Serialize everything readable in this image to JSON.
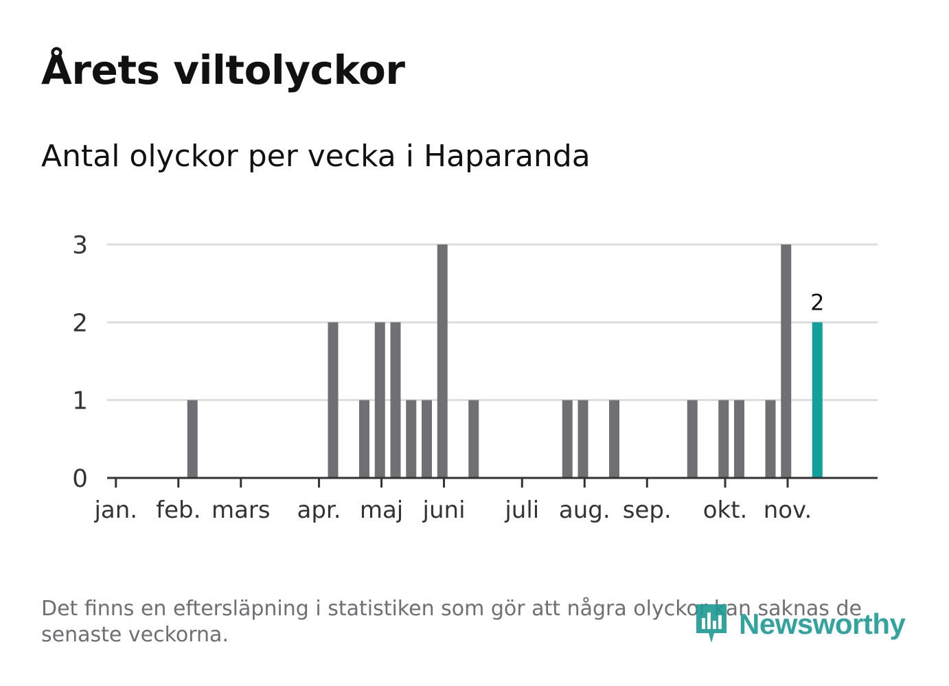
{
  "header": {
    "title": "Årets viltolyckor",
    "subtitle": "Antal olyckor per vecka i Haparanda"
  },
  "footer": {
    "note": "Det finns en eftersläpning i statistiken som gör att några olyckor kan saknas de senaste veckorna.",
    "brand": "Newsworthy"
  },
  "colors": {
    "bar": "#707074",
    "highlight": "#12a19a",
    "grid": "#dddddd",
    "axis": "#333333"
  },
  "chart_data": {
    "type": "bar",
    "title": "Årets viltolyckor",
    "subtitle": "Antal olyckor per vecka i Haparanda",
    "xlabel": "",
    "ylabel": "",
    "ylim": [
      0,
      3
    ],
    "yticks": [
      "0",
      "1",
      "2",
      "3"
    ],
    "weeks": [
      1,
      2,
      3,
      4,
      5,
      6,
      7,
      8,
      9,
      10,
      11,
      12,
      13,
      14,
      15,
      16,
      17,
      18,
      19,
      20,
      21,
      22,
      23,
      24,
      25,
      26,
      27,
      28,
      29,
      30,
      31,
      32,
      33,
      34,
      35,
      36,
      37,
      38,
      39,
      40,
      41,
      42,
      43,
      44,
      45,
      46
    ],
    "values": [
      0,
      0,
      0,
      0,
      0,
      1,
      0,
      0,
      0,
      0,
      0,
      0,
      0,
      0,
      2,
      0,
      1,
      2,
      2,
      1,
      1,
      3,
      0,
      1,
      0,
      0,
      0,
      0,
      0,
      1,
      1,
      0,
      1,
      0,
      0,
      0,
      0,
      1,
      0,
      1,
      1,
      0,
      1,
      3,
      0,
      2
    ],
    "highlight_week": 46,
    "highlight_label": "2",
    "month_ticks": [
      {
        "label": "jan.",
        "week": 1.43
      },
      {
        "label": "feb.",
        "week": 5.43
      },
      {
        "label": "mars",
        "week": 9.43
      },
      {
        "label": "apr.",
        "week": 14.43
      },
      {
        "label": "maj",
        "week": 18.43
      },
      {
        "label": "juni",
        "week": 22.43
      },
      {
        "label": "juli",
        "week": 27.43
      },
      {
        "label": "aug.",
        "week": 31.43
      },
      {
        "label": "sep.",
        "week": 35.43
      },
      {
        "label": "okt.",
        "week": 40.43
      },
      {
        "label": "nov.",
        "week": 44.43
      }
    ]
  }
}
